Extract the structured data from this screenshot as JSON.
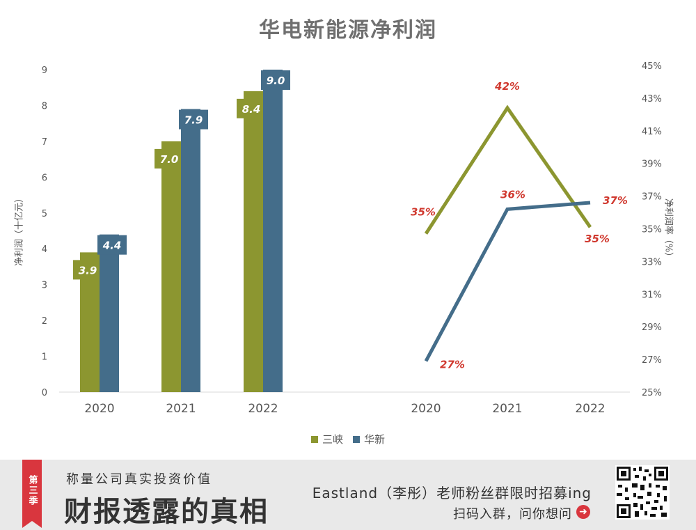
{
  "title": "华电新能源净利润",
  "legend": [
    {
      "name": "三峡",
      "color": "#8c9630"
    },
    {
      "name": "华新",
      "color": "#446d8a"
    }
  ],
  "left_axis_title": "净利润（十亿元）",
  "right_axis_title": "净利润率（%）",
  "chart_data": [
    {
      "type": "bar",
      "categories": [
        "2020",
        "2021",
        "2022"
      ],
      "series": [
        {
          "name": "三峡",
          "values": [
            3.9,
            7.0,
            8.4
          ],
          "labels": [
            "3.9",
            "7.0",
            "8.4"
          ],
          "color": "#8c9630"
        },
        {
          "name": "华新",
          "values": [
            4.4,
            7.9,
            9.0
          ],
          "labels": [
            "4.4",
            "7.9",
            "9.0"
          ],
          "color": "#446d8a"
        }
      ],
      "ylabel": "净利润（十亿元）",
      "ylim": [
        0,
        9
      ],
      "yticks": [
        "0",
        "1",
        "2",
        "3",
        "4",
        "5",
        "6",
        "7",
        "8",
        "9"
      ]
    },
    {
      "type": "line",
      "categories": [
        "2020",
        "2021",
        "2022"
      ],
      "series": [
        {
          "name": "三峡",
          "values": [
            34.7,
            42.4,
            35.1
          ],
          "labels": [
            "35%",
            "42%",
            "35%"
          ],
          "color": "#8c9630"
        },
        {
          "name": "华新",
          "values": [
            26.9,
            36.2,
            36.6
          ],
          "labels": [
            "27%",
            "36%",
            "37%"
          ],
          "color": "#446d8a"
        }
      ],
      "label_color": "#d0392f",
      "ylabel": "净利润率（%）",
      "ylim": [
        25,
        45
      ],
      "yticks": [
        "25%",
        "27%",
        "29%",
        "31%",
        "33%",
        "35%",
        "37%",
        "39%",
        "41%",
        "43%",
        "45%"
      ]
    }
  ],
  "banner": {
    "tag": "第三季",
    "subtitle": "称量公司真实投资价值",
    "main": "财报透露的真相",
    "right_line1": "Eastland（李彤）老师粉丝群限时招募ing",
    "right_line2": "扫码入群，问你想问",
    "arrow_icon": "arrow-right-icon",
    "qr_icon": "qr-code-icon"
  }
}
